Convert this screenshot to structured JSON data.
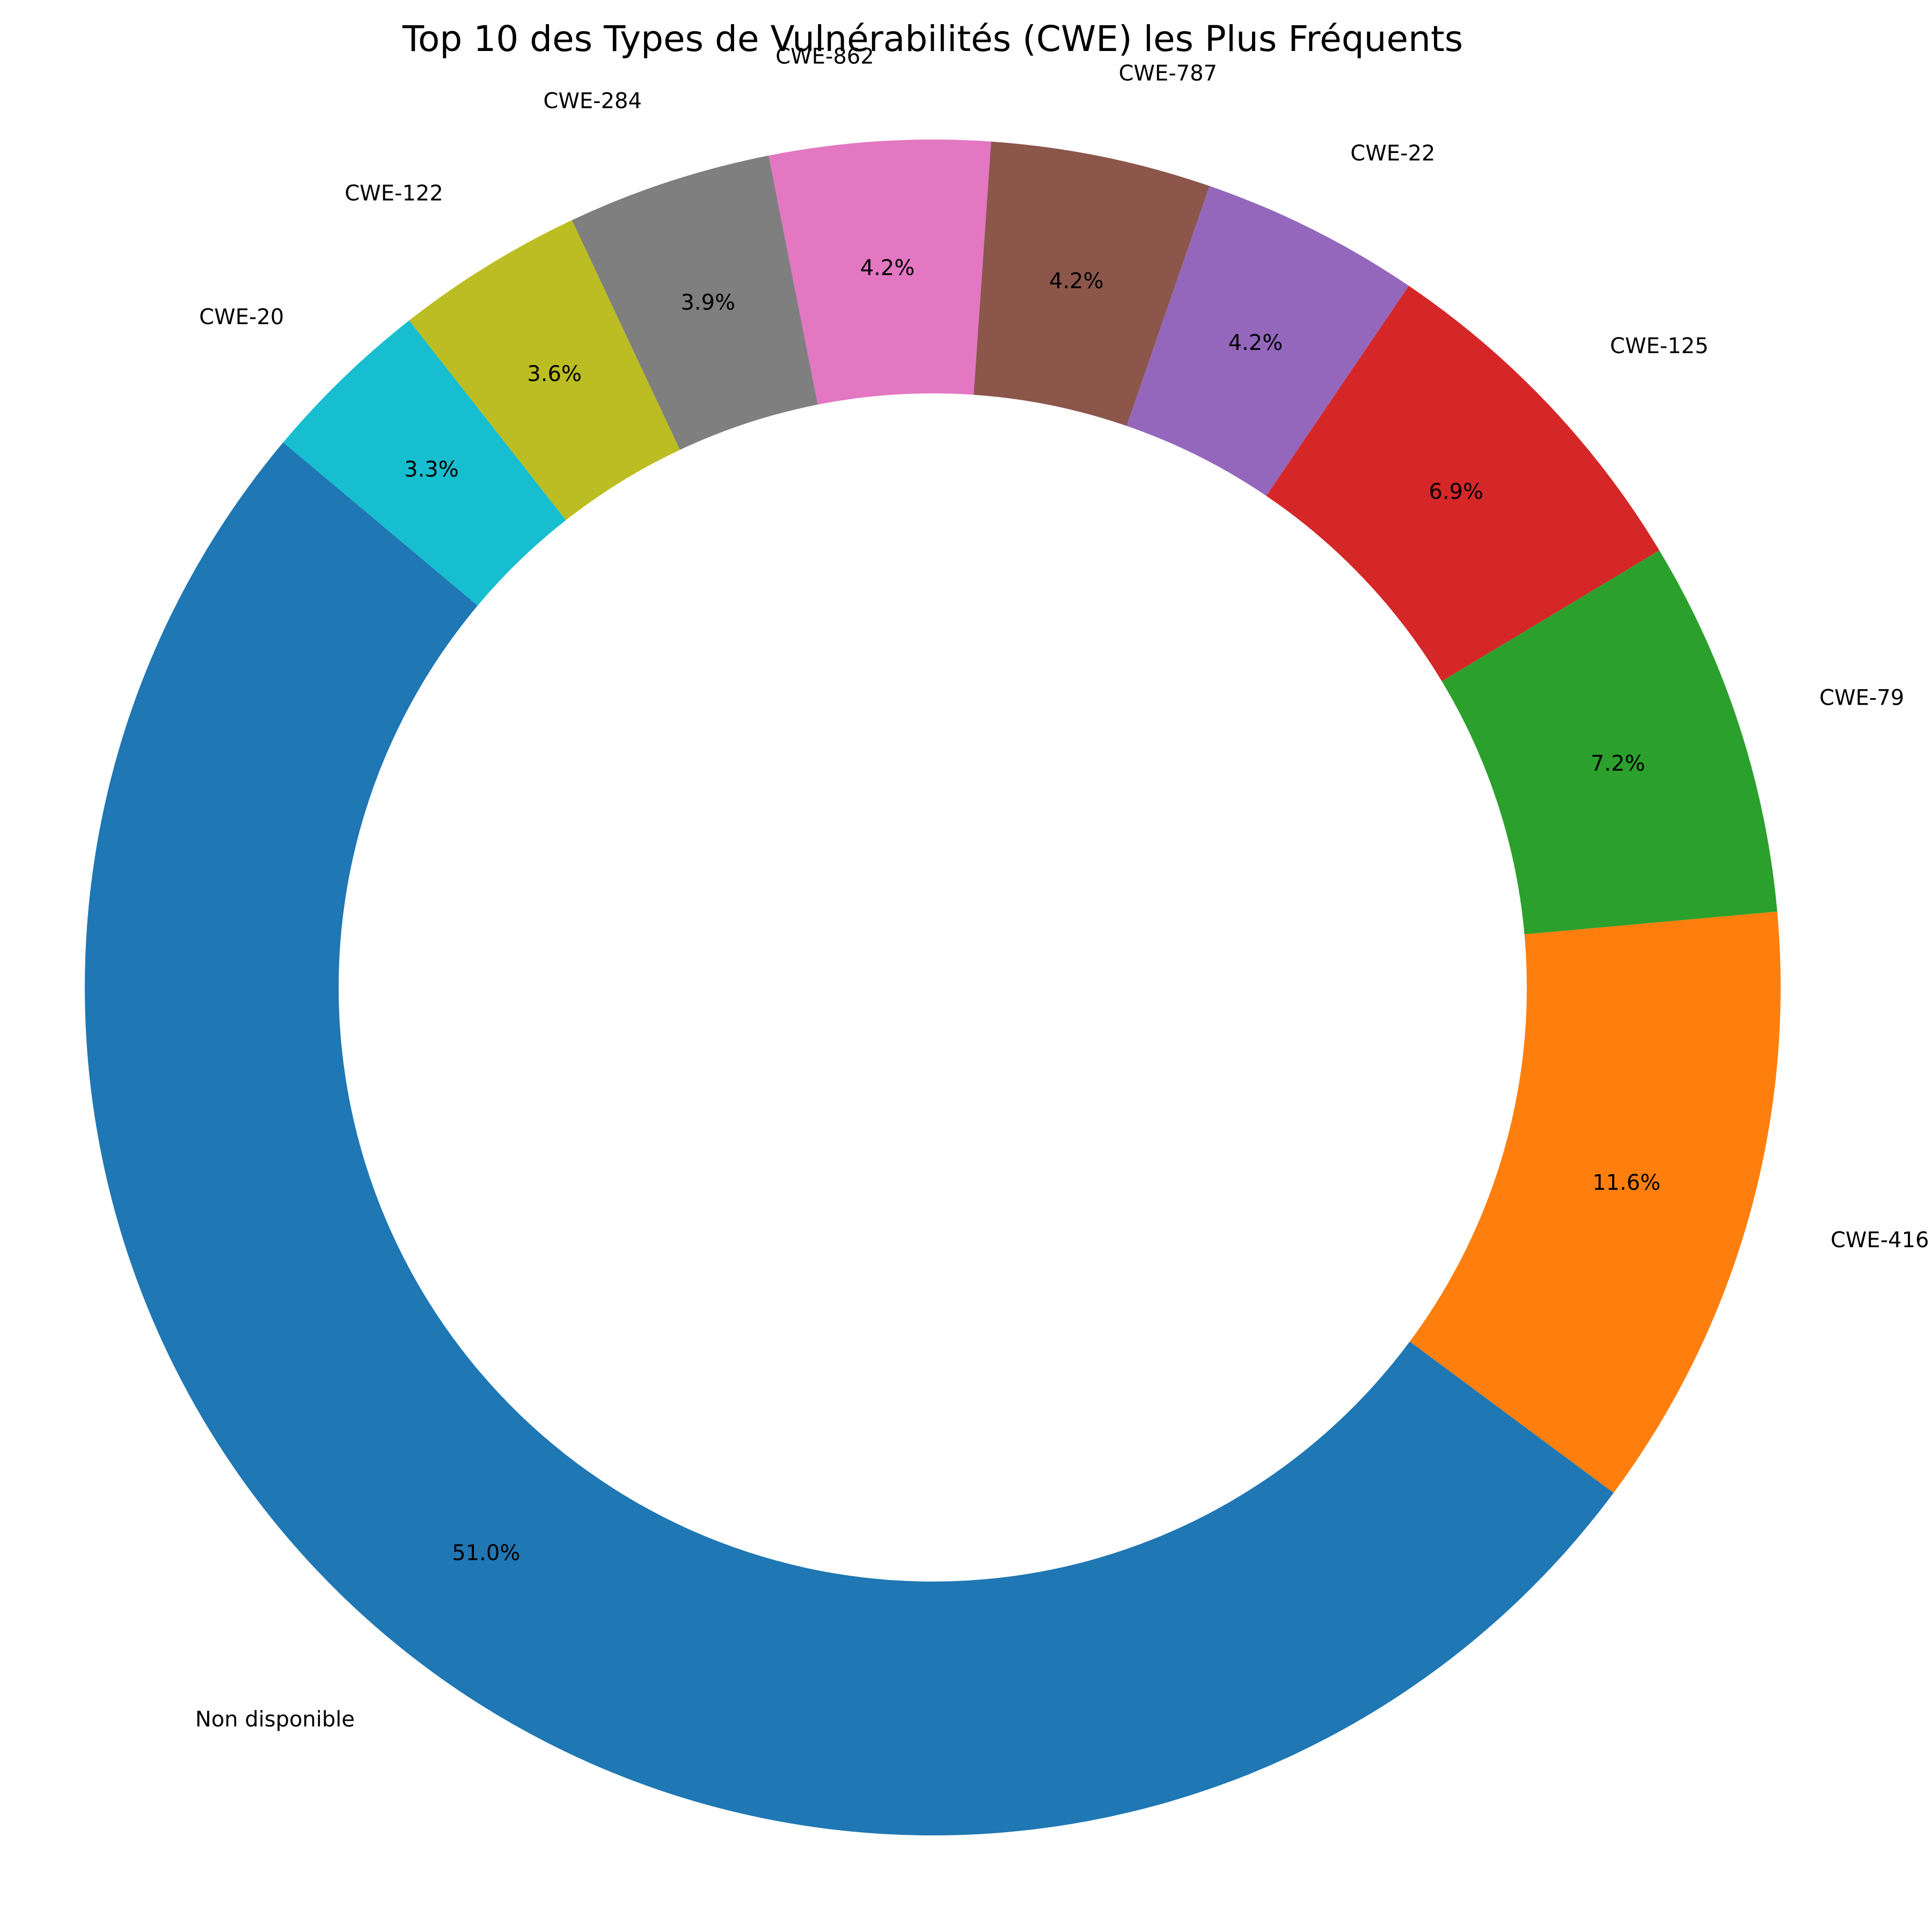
{
  "chart_data": {
    "type": "pie",
    "style": "donut",
    "title": "Top 10 des Types de Vulnérabilités (CWE) les Plus Fréquents",
    "start_angle_deg": 140,
    "direction": "counterclockwise",
    "slices": [
      {
        "label": "Non disponible",
        "value": 51.0,
        "pct_label": "51.0%",
        "color": "#1f77b4"
      },
      {
        "label": "CWE-416",
        "value": 11.6,
        "pct_label": "11.6%",
        "color": "#ff7f0e"
      },
      {
        "label": "CWE-79",
        "value": 7.2,
        "pct_label": "7.2%",
        "color": "#2ca02c"
      },
      {
        "label": "CWE-125",
        "value": 6.9,
        "pct_label": "6.9%",
        "color": "#d62728"
      },
      {
        "label": "CWE-22",
        "value": 4.2,
        "pct_label": "4.2%",
        "color": "#9467bd"
      },
      {
        "label": "CWE-787",
        "value": 4.2,
        "pct_label": "4.2%",
        "color": "#8c564b"
      },
      {
        "label": "CWE-862",
        "value": 4.2,
        "pct_label": "4.2%",
        "color": "#e377c2"
      },
      {
        "label": "CWE-284",
        "value": 3.9,
        "pct_label": "3.9%",
        "color": "#7f7f7f"
      },
      {
        "label": "CWE-122",
        "value": 3.6,
        "pct_label": "3.6%",
        "color": "#bcbd22"
      },
      {
        "label": "CWE-20",
        "value": 3.3,
        "pct_label": "3.3%",
        "color": "#17becf"
      }
    ],
    "legend": "none"
  }
}
